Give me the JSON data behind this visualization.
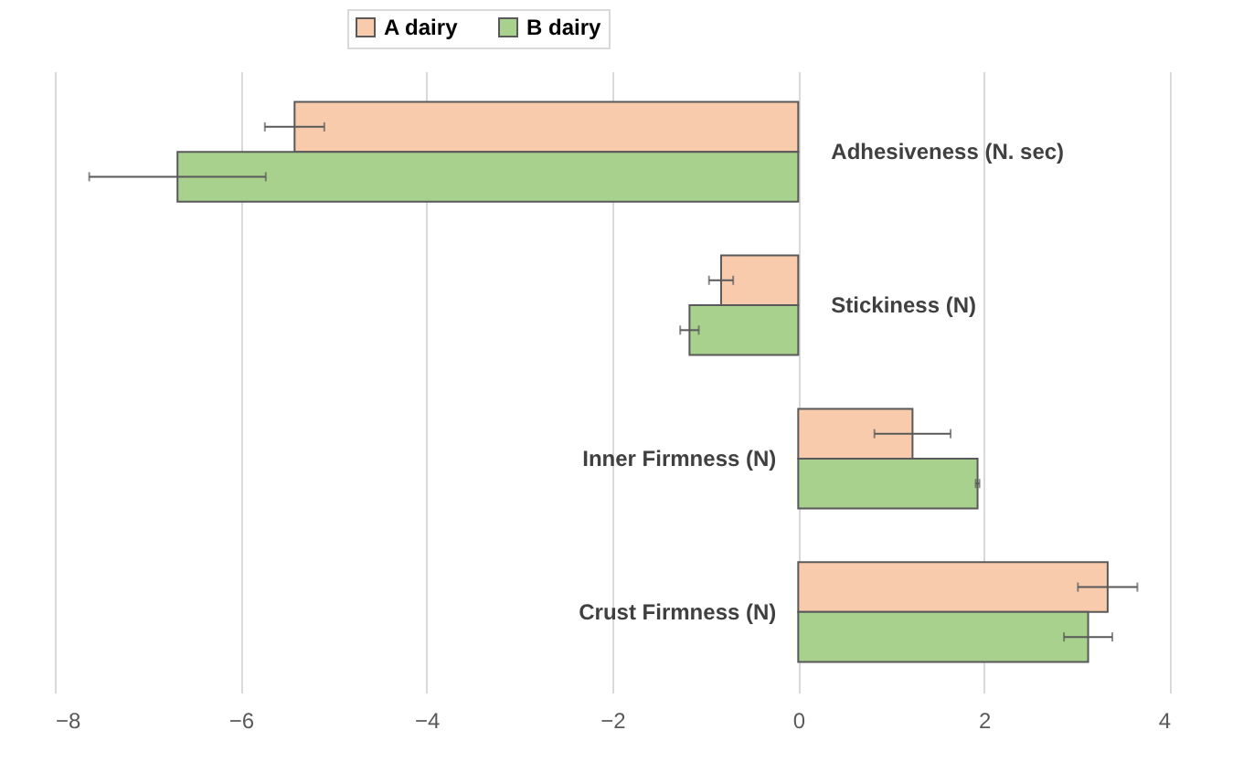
{
  "chart_data": {
    "type": "bar",
    "orientation": "horizontal",
    "categories": [
      "Adhesiveness (N. sec)",
      "Stickiness (N)",
      "Inner Firmness (N)",
      "Crust Firmness (N)"
    ],
    "series": [
      {
        "name": "A dairy",
        "color": "#f8cbad",
        "values": [
          -5.42,
          -0.83,
          1.23,
          3.33
        ],
        "errors": [
          0.32,
          0.13,
          0.41,
          0.32
        ]
      },
      {
        "name": "B dairy",
        "color": "#a9d18e",
        "values": [
          -6.68,
          -1.17,
          1.93,
          3.12
        ],
        "errors": [
          0.95,
          0.1,
          0.02,
          0.26
        ]
      }
    ],
    "xlim": [
      -8,
      4
    ],
    "xticks": [
      -8,
      -6,
      -4,
      -2,
      0,
      2,
      4
    ],
    "grid": "x",
    "legend": "top"
  }
}
